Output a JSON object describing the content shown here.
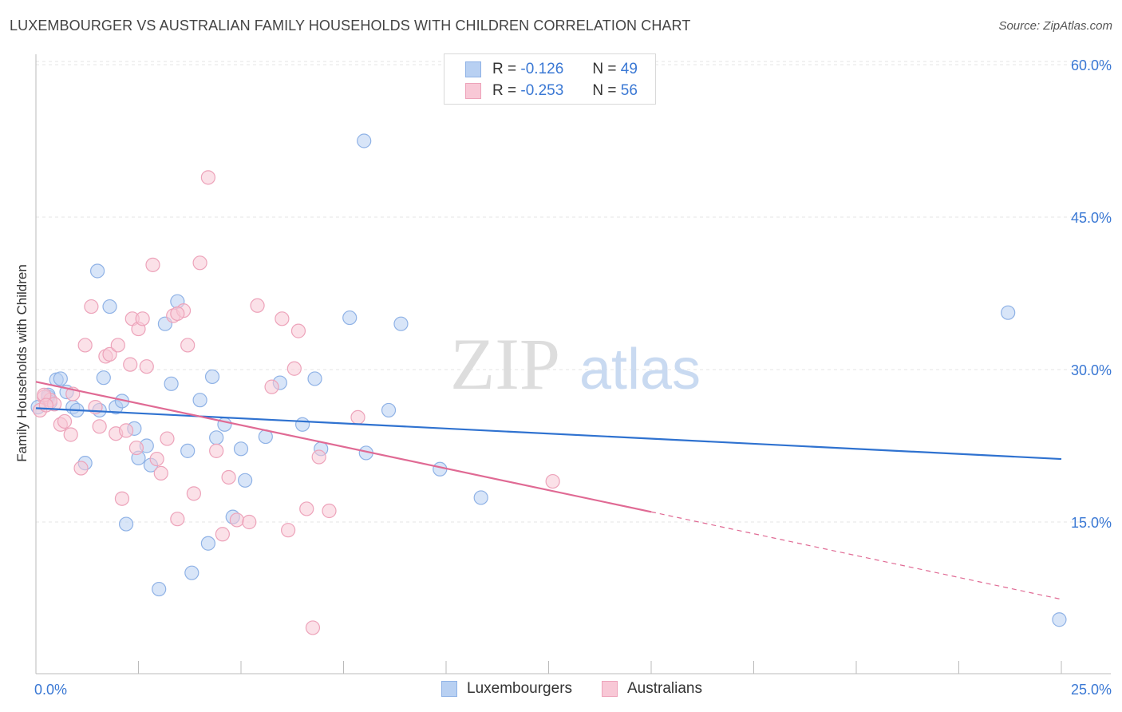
{
  "title": "LUXEMBOURGER VS AUSTRALIAN FAMILY HOUSEHOLDS WITH CHILDREN CORRELATION CHART",
  "source": "Source: ZipAtlas.com",
  "watermark": {
    "zip": "ZIP",
    "atlas": "atlas"
  },
  "colors": {
    "blue_fill": "#b8d0f2",
    "blue_stroke": "#8fb2e6",
    "blue_line": "#2f72d0",
    "pink_fill": "#f8c8d6",
    "pink_stroke": "#eda3ba",
    "pink_line": "#e06a94",
    "axis_label": "#3a78d4",
    "grid": "#e6e6e6"
  },
  "legend": {
    "blue": {
      "r_label": "R =",
      "r_value": "-0.126",
      "n_label": "N =",
      "n_value": "49"
    },
    "pink": {
      "r_label": "R =",
      "r_value": "-0.253",
      "n_label": "N =",
      "n_value": "56"
    }
  },
  "bottom_legend": {
    "blue": "Luxembourgers",
    "pink": "Australians"
  },
  "chart_data": {
    "type": "scatter",
    "title": "LUXEMBOURGER VS AUSTRALIAN FAMILY HOUSEHOLDS WITH CHILDREN CORRELATION CHART",
    "xlabel": "",
    "ylabel": "Family Households with Children",
    "xlim": [
      0,
      25
    ],
    "ylim": [
      0,
      60
    ],
    "x_tick_labels": [
      "0.0%",
      "25.0%"
    ],
    "y_ticks": [
      15,
      30,
      45,
      60
    ],
    "y_tick_labels": [
      "15.0%",
      "30.0%",
      "45.0%",
      "60.0%"
    ],
    "grid": true,
    "series": [
      {
        "name": "Luxembourgers",
        "color": "blue",
        "r": -0.126,
        "n": 49,
        "trend": {
          "x0": 0,
          "y0": 26.2,
          "x1": 25,
          "y1": 21.2
        },
        "points": [
          [
            0.05,
            26.3
          ],
          [
            0.3,
            27.3
          ],
          [
            0.35,
            26.8
          ],
          [
            0.5,
            29.0
          ],
          [
            0.6,
            29.1
          ],
          [
            0.75,
            27.8
          ],
          [
            0.9,
            26.3
          ],
          [
            1.0,
            26.0
          ],
          [
            1.2,
            20.8
          ],
          [
            1.55,
            26.0
          ],
          [
            1.65,
            29.2
          ],
          [
            1.8,
            36.2
          ],
          [
            1.95,
            26.3
          ],
          [
            2.1,
            26.9
          ],
          [
            2.2,
            14.8
          ],
          [
            2.4,
            24.2
          ],
          [
            2.5,
            21.3
          ],
          [
            2.7,
            22.5
          ],
          [
            2.8,
            20.6
          ],
          [
            3.0,
            8.4
          ],
          [
            3.15,
            34.5
          ],
          [
            3.3,
            28.6
          ],
          [
            3.45,
            36.7
          ],
          [
            3.7,
            22.0
          ],
          [
            3.8,
            10.0
          ],
          [
            4.0,
            27.0
          ],
          [
            4.2,
            12.9
          ],
          [
            4.3,
            29.3
          ],
          [
            4.4,
            23.3
          ],
          [
            4.6,
            24.6
          ],
          [
            4.8,
            15.5
          ],
          [
            5.0,
            22.2
          ],
          [
            5.1,
            19.1
          ],
          [
            5.6,
            23.4
          ],
          [
            5.95,
            28.7
          ],
          [
            6.5,
            24.6
          ],
          [
            6.8,
            29.1
          ],
          [
            6.95,
            22.2
          ],
          [
            7.65,
            35.1
          ],
          [
            8.05,
            21.8
          ],
          [
            8.0,
            52.5
          ],
          [
            8.6,
            26.0
          ],
          [
            8.9,
            34.5
          ],
          [
            9.85,
            20.2
          ],
          [
            10.85,
            17.4
          ],
          [
            1.5,
            39.7
          ],
          [
            0.3,
            27.5
          ],
          [
            23.7,
            35.6
          ],
          [
            24.95,
            5.4
          ]
        ]
      },
      {
        "name": "Australians",
        "color": "pink",
        "r": -0.253,
        "n": 56,
        "trend": {
          "x0": 0,
          "y0": 28.8,
          "x1": 15.0,
          "y1": 16.0,
          "dash_x1": 25,
          "dash_y1": 7.4
        },
        "points": [
          [
            0.1,
            26.0
          ],
          [
            0.2,
            27.3
          ],
          [
            0.35,
            27.0
          ],
          [
            0.45,
            26.6
          ],
          [
            0.6,
            24.6
          ],
          [
            0.7,
            24.9
          ],
          [
            0.85,
            23.6
          ],
          [
            0.9,
            27.6
          ],
          [
            1.1,
            20.3
          ],
          [
            1.2,
            32.4
          ],
          [
            1.35,
            36.2
          ],
          [
            1.45,
            26.3
          ],
          [
            1.55,
            24.4
          ],
          [
            1.7,
            31.3
          ],
          [
            1.8,
            31.5
          ],
          [
            1.95,
            23.7
          ],
          [
            2.0,
            32.4
          ],
          [
            2.1,
            17.3
          ],
          [
            2.2,
            24.0
          ],
          [
            2.35,
            35.0
          ],
          [
            2.45,
            22.3
          ],
          [
            2.5,
            34.0
          ],
          [
            2.6,
            35.0
          ],
          [
            2.7,
            30.3
          ],
          [
            2.85,
            40.3
          ],
          [
            2.95,
            21.2
          ],
          [
            3.05,
            19.8
          ],
          [
            3.2,
            23.2
          ],
          [
            3.35,
            35.3
          ],
          [
            3.45,
            15.3
          ],
          [
            3.6,
            35.8
          ],
          [
            3.7,
            32.4
          ],
          [
            3.85,
            17.8
          ],
          [
            4.0,
            40.5
          ],
          [
            4.2,
            48.9
          ],
          [
            4.4,
            22.0
          ],
          [
            4.55,
            13.8
          ],
          [
            4.7,
            19.4
          ],
          [
            4.9,
            15.2
          ],
          [
            5.2,
            15.0
          ],
          [
            5.4,
            36.3
          ],
          [
            5.75,
            28.3
          ],
          [
            6.0,
            35.0
          ],
          [
            6.15,
            14.2
          ],
          [
            6.3,
            30.1
          ],
          [
            6.4,
            33.8
          ],
          [
            6.6,
            16.3
          ],
          [
            6.75,
            4.6
          ],
          [
            6.9,
            21.4
          ],
          [
            7.15,
            16.1
          ],
          [
            7.85,
            25.3
          ],
          [
            0.2,
            27.5
          ],
          [
            0.25,
            26.5
          ],
          [
            3.45,
            35.5
          ],
          [
            12.6,
            19.0
          ],
          [
            2.3,
            30.5
          ]
        ]
      }
    ]
  }
}
